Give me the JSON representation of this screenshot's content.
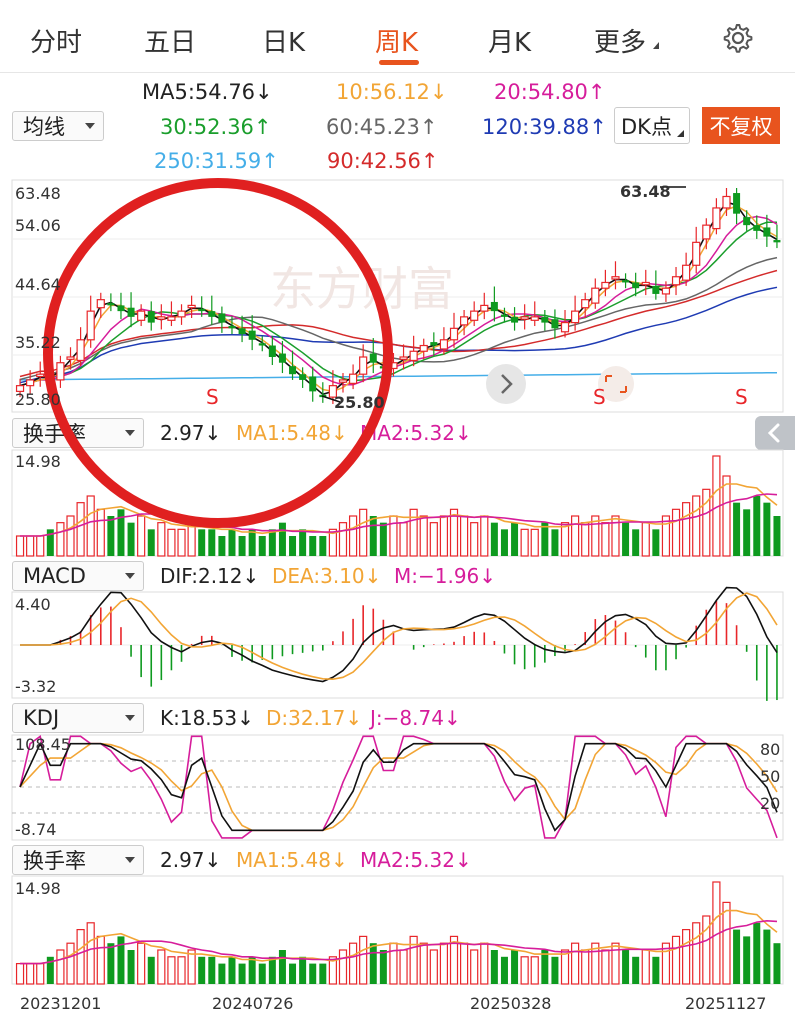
{
  "tabs": [
    {
      "label": "分时",
      "active": false
    },
    {
      "label": "五日",
      "active": false
    },
    {
      "label": "日K",
      "active": false
    },
    {
      "label": "周K",
      "active": true
    },
    {
      "label": "月K",
      "active": false
    },
    {
      "label": "更多",
      "active": false
    }
  ],
  "settings_icon": "gear-icon",
  "ma_selector": "均线",
  "ma_values": [
    {
      "text": "MA5:54.76",
      "arrow": "↓",
      "color": "#222222"
    },
    {
      "text": "10:56.12",
      "arrow": "↓",
      "color": "#f2a535"
    },
    {
      "text": "20:54.80",
      "arrow": "↑",
      "color": "#d61d9b"
    },
    {
      "text": "30:52.36",
      "arrow": "↑",
      "color": "#1a9e2c"
    },
    {
      "text": "60:45.23",
      "arrow": "↑",
      "color": "#666666"
    },
    {
      "text": "120:39.88",
      "arrow": "↑",
      "color": "#1f3bb3"
    },
    {
      "text": "250:31.59",
      "arrow": "↑",
      "color": "#45aee8"
    },
    {
      "text": "90:42.56",
      "arrow": "↑",
      "color": "#d42b2b"
    }
  ],
  "dk_button": "DK点",
  "adjust_button": "不复权",
  "colors": {
    "up": "#e8262a",
    "down": "#0e9a1f",
    "accent": "#e8541e",
    "ring": "#e02020"
  },
  "main_chart": {
    "y_labels": [
      "63.48",
      "54.06",
      "44.64",
      "35.22",
      "25.80"
    ],
    "high_label": "63.48",
    "low_label": "25.80",
    "signals": [
      "S",
      "S",
      "S"
    ],
    "watermark": "东方财富"
  },
  "turnover_panel": {
    "selector": "换手率",
    "value": "2.97",
    "value_arrow": "↓",
    "ma1": "MA1:5.48",
    "ma1_arrow": "↓",
    "ma2": "MA2:5.32",
    "ma2_arrow": "↓",
    "y_max": "14.98"
  },
  "macd_panel": {
    "selector": "MACD",
    "dif": "DIF:2.12",
    "dif_arrow": "↓",
    "dea": "DEA:3.10",
    "dea_arrow": "↓",
    "m": "M:−1.96",
    "m_arrow": "↓",
    "y_max": "4.40",
    "y_min": "-3.32"
  },
  "kdj_panel": {
    "selector": "KDJ",
    "k": "K:18.53",
    "k_arrow": "↓",
    "d": "D:32.17",
    "d_arrow": "↓",
    "j": "J:−8.74",
    "j_arrow": "↓",
    "y_max": "108.45",
    "y_min": "-8.74",
    "levels": [
      "80",
      "50",
      "20"
    ]
  },
  "turnover_panel_2": {
    "selector": "换手率",
    "value": "2.97",
    "value_arrow": "↓",
    "ma1": "MA1:5.48",
    "ma1_arrow": "↓",
    "ma2": "MA2:5.32",
    "ma2_arrow": "↓",
    "y_max": "14.98"
  },
  "x_labels": [
    "20231201",
    "20240726",
    "20250328",
    "20251127"
  ],
  "chart_data": {
    "type": "candlestick",
    "title": "",
    "period": "weekly",
    "x_range": [
      "20231201",
      "20251127"
    ],
    "ylim": [
      25.8,
      63.48
    ],
    "high": 63.48,
    "low": 25.8,
    "weekly_close_approx": [
      29,
      30,
      31,
      30,
      33,
      34,
      37,
      42,
      44,
      43,
      42,
      41,
      42,
      40,
      41,
      41,
      42,
      43,
      42,
      41,
      40,
      39,
      38,
      37,
      36,
      34,
      33,
      31,
      30,
      28,
      27,
      29,
      30,
      31,
      34,
      33,
      32,
      33,
      34,
      35,
      36,
      36,
      37,
      39,
      41,
      42,
      43,
      42,
      41,
      40,
      41,
      41,
      40,
      39,
      40,
      42,
      44,
      46,
      47,
      48,
      47,
      46,
      47,
      45,
      46,
      48,
      50,
      54,
      57,
      60,
      62,
      59,
      57,
      56,
      55,
      54
    ],
    "turnover_approx": [
      3,
      3,
      3,
      4,
      5,
      6,
      8,
      9,
      7,
      6,
      7,
      5,
      6,
      4,
      5,
      4,
      4,
      5,
      4,
      4,
      3,
      4,
      3,
      4,
      3,
      4,
      5,
      3,
      4,
      3,
      3,
      4,
      5,
      6,
      7,
      6,
      5,
      6,
      5,
      7,
      6,
      5,
      6,
      7,
      6,
      5,
      6,
      5,
      4,
      5,
      4,
      4,
      5,
      4,
      5,
      6,
      5,
      6,
      5,
      6,
      5,
      4,
      5,
      4,
      6,
      7,
      8,
      9,
      10,
      15,
      12,
      8,
      7,
      9,
      8,
      6
    ],
    "ma_last": {
      "MA5": 54.76,
      "MA10": 56.12,
      "MA20": 54.8,
      "MA30": 52.36,
      "MA60": 45.23,
      "MA90": 42.56,
      "MA120": 39.88,
      "MA250": 31.59
    },
    "macd_last": {
      "DIF": 2.12,
      "DEA": 3.1,
      "M": -1.96
    },
    "kdj_last": {
      "K": 18.53,
      "D": 32.17,
      "J": -8.74
    },
    "turnover_last": {
      "value": 2.97,
      "MA1": 5.48,
      "MA2": 5.32
    }
  }
}
